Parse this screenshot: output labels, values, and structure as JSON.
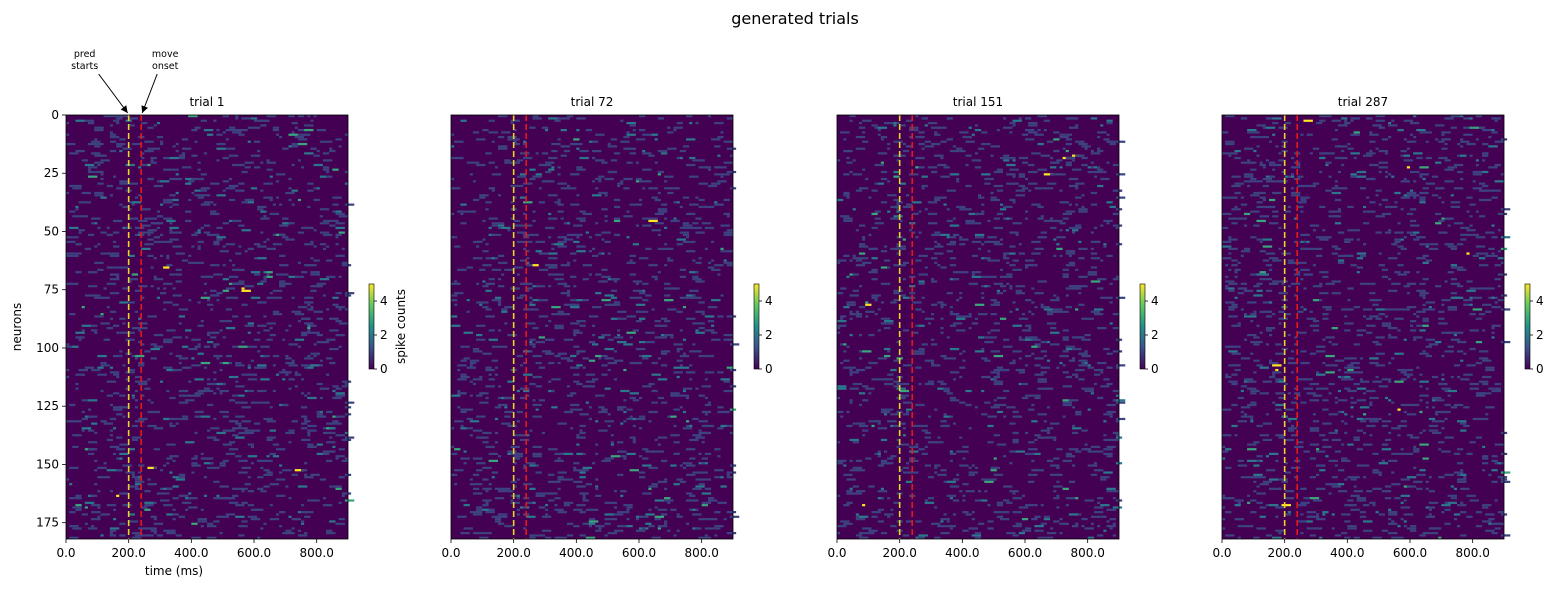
{
  "figure": {
    "suptitle": "generated trials"
  },
  "chart_data": [
    {
      "type": "heatmap",
      "title": "trial 1",
      "xlabel": "time (ms)",
      "ylabel": "neurons",
      "xlim": [
        0,
        900
      ],
      "ylim": [
        182,
        0
      ],
      "xticks": [
        0,
        200,
        400,
        600,
        800
      ],
      "xtick_labels": [
        "0.0",
        "200.0",
        "400.0",
        "600.0",
        "800.0"
      ],
      "yticks": [
        0,
        25,
        50,
        75,
        100,
        125,
        150,
        175
      ],
      "ytick_labels": [
        "0",
        "25",
        "50",
        "75",
        "100",
        "125",
        "150",
        "175"
      ],
      "vlines": [
        {
          "x": 200,
          "color": "#e8d625",
          "style": "dashed"
        },
        {
          "x": 240,
          "color": "#e8151b",
          "style": "dashed"
        }
      ],
      "annotations": [
        {
          "text": [
            "pred",
            "starts"
          ],
          "x": 200
        },
        {
          "text": [
            "move",
            "onset"
          ],
          "x": 240
        }
      ],
      "colorbar": {
        "label": "spike counts",
        "vmin": 0,
        "vmax": 5,
        "ticks": [
          0,
          2,
          4
        ],
        "colormap": "viridis"
      },
      "description": "sparse spike-count raster (mostly 0, occasional 1–5)"
    },
    {
      "type": "heatmap",
      "title": "trial 72",
      "xlim": [
        0,
        900
      ],
      "ylim": [
        182,
        0
      ],
      "xticks": [
        0,
        200,
        400,
        600,
        800
      ],
      "xtick_labels": [
        "0.0",
        "200.0",
        "400.0",
        "600.0",
        "800.0"
      ],
      "vlines": [
        {
          "x": 200,
          "color": "#e8d625",
          "style": "dashed"
        },
        {
          "x": 240,
          "color": "#e8151b",
          "style": "dashed"
        }
      ],
      "colorbar": {
        "label": "",
        "vmin": 0,
        "vmax": 5,
        "ticks": [
          0,
          2,
          4
        ],
        "colormap": "viridis"
      }
    },
    {
      "type": "heatmap",
      "title": "trial 151",
      "xlim": [
        0,
        900
      ],
      "ylim": [
        182,
        0
      ],
      "xticks": [
        0,
        200,
        400,
        600,
        800
      ],
      "xtick_labels": [
        "0.0",
        "200.0",
        "400.0",
        "600.0",
        "800.0"
      ],
      "vlines": [
        {
          "x": 200,
          "color": "#e8d625",
          "style": "dashed"
        },
        {
          "x": 240,
          "color": "#e8151b",
          "style": "dashed"
        }
      ],
      "colorbar": {
        "label": "",
        "vmin": 0,
        "vmax": 5,
        "ticks": [
          0,
          2,
          4
        ],
        "colormap": "viridis"
      }
    },
    {
      "type": "heatmap",
      "title": "trial 287",
      "xlim": [
        0,
        900
      ],
      "ylim": [
        182,
        0
      ],
      "xticks": [
        0,
        200,
        400,
        600,
        800
      ],
      "xtick_labels": [
        "0.0",
        "200.0",
        "400.0",
        "600.0",
        "800.0"
      ],
      "vlines": [
        {
          "x": 200,
          "color": "#e8d625",
          "style": "dashed"
        },
        {
          "x": 240,
          "color": "#e8151b",
          "style": "dashed"
        }
      ],
      "colorbar": {
        "label": "",
        "vmin": 0,
        "vmax": 5,
        "ticks": [
          0,
          2,
          4
        ],
        "colormap": "viridis"
      }
    }
  ]
}
